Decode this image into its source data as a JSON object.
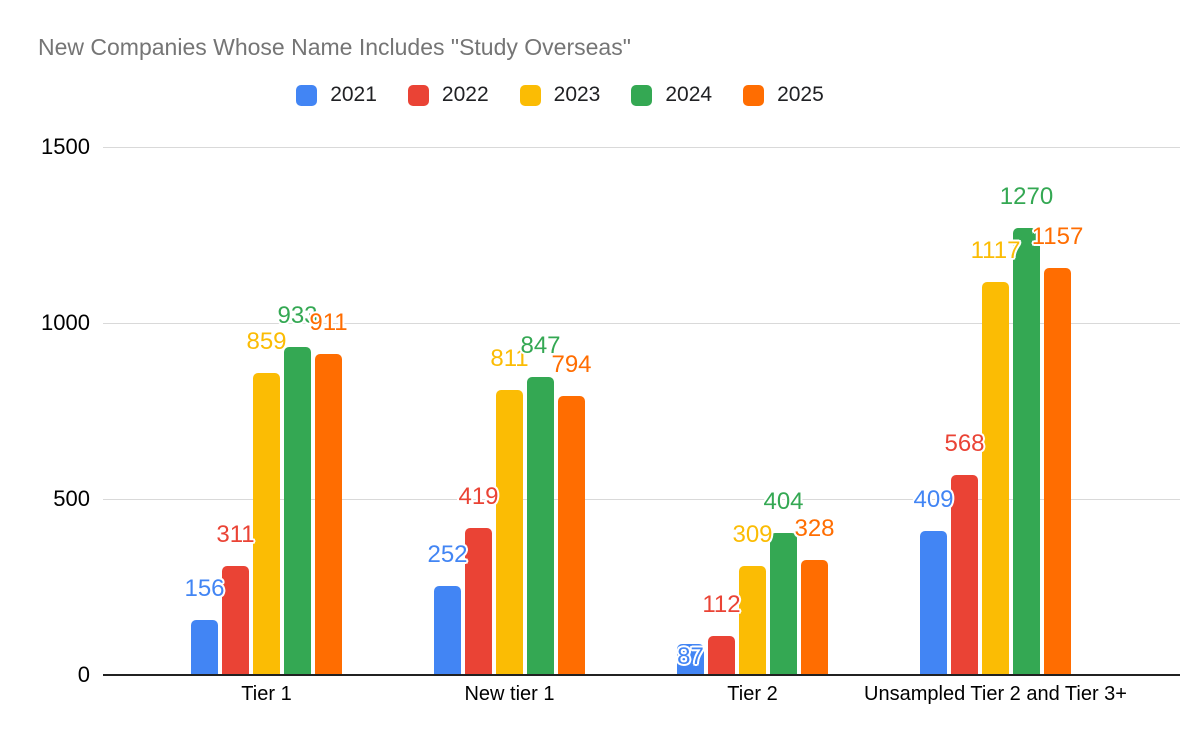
{
  "chart_data": {
    "type": "bar",
    "title": "New Companies Whose Name Includes \"Study Overseas\"",
    "categories": [
      "Tier 1",
      "New tier 1",
      "Tier 2",
      "Unsampled Tier 2 and Tier 3+"
    ],
    "series": [
      {
        "name": "2021",
        "color": "#4285F4",
        "values": [
          156,
          252,
          87,
          409
        ]
      },
      {
        "name": "2022",
        "color": "#EA4335",
        "values": [
          311,
          419,
          112,
          568
        ]
      },
      {
        "name": "2023",
        "color": "#FBBC04",
        "values": [
          859,
          811,
          309,
          1117
        ]
      },
      {
        "name": "2024",
        "color": "#34A853",
        "values": [
          933,
          847,
          404,
          1270
        ]
      },
      {
        "name": "2025",
        "color": "#FF6D01",
        "values": [
          911,
          794,
          328,
          1157
        ]
      }
    ],
    "y_ticks": [
      0,
      500,
      1000,
      1500
    ],
    "ylim": [
      0,
      1500
    ],
    "xlabel": "",
    "ylabel": "",
    "legend_position": "top",
    "grid": true,
    "data_labels": true
  }
}
